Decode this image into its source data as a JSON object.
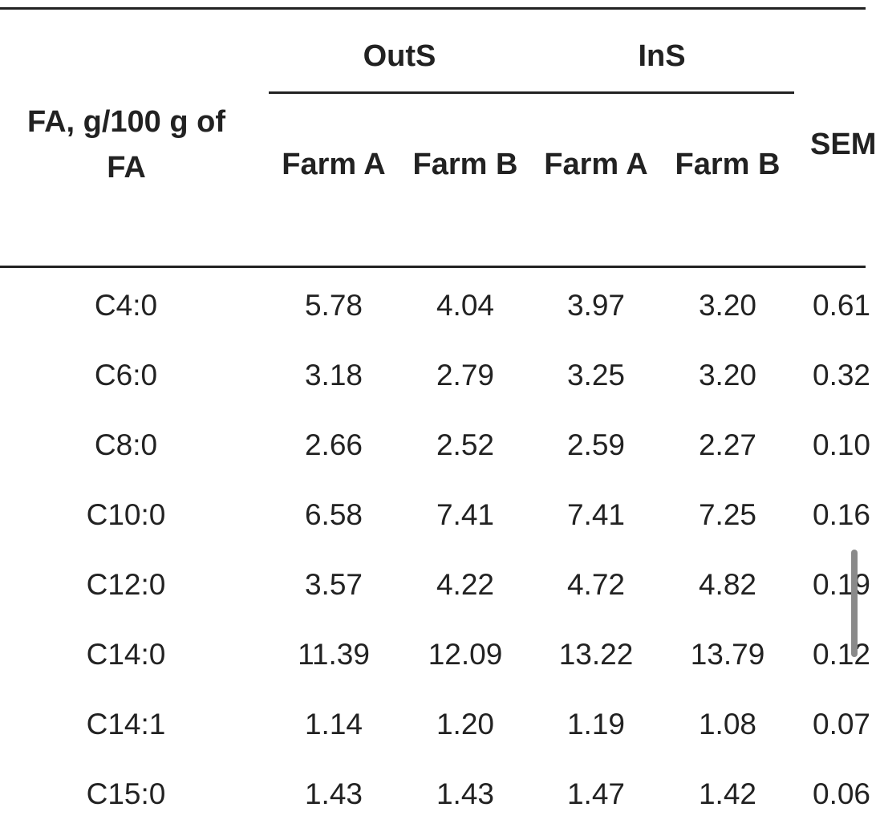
{
  "table": {
    "row_header": "FA, g/100 g of FA",
    "groups": [
      {
        "label": "OutS",
        "columns": [
          "Farm A",
          "Farm B"
        ]
      },
      {
        "label": "InS",
        "columns": [
          "Farm A",
          "Farm B"
        ]
      }
    ],
    "sem_header": "SEM",
    "rows": [
      {
        "fa": "C4:0",
        "values": [
          "5.78",
          "4.04",
          "3.97",
          "3.20"
        ],
        "sem": "0.61"
      },
      {
        "fa": "C6:0",
        "values": [
          "3.18",
          "2.79",
          "3.25",
          "3.20"
        ],
        "sem": "0.32"
      },
      {
        "fa": "C8:0",
        "values": [
          "2.66",
          "2.52",
          "2.59",
          "2.27"
        ],
        "sem": "0.10"
      },
      {
        "fa": "C10:0",
        "values": [
          "6.58",
          "7.41",
          "7.41",
          "7.25"
        ],
        "sem": "0.16"
      },
      {
        "fa": "C12:0",
        "values": [
          "3.57",
          "4.22",
          "4.72",
          "4.82"
        ],
        "sem": "0.19"
      },
      {
        "fa": "C14:0",
        "values": [
          "11.39",
          "12.09",
          "13.22",
          "13.79"
        ],
        "sem": "0.12"
      },
      {
        "fa": "C14:1",
        "values": [
          "1.14",
          "1.20",
          "1.19",
          "1.08"
        ],
        "sem": "0.07"
      },
      {
        "fa": "C15:0",
        "values": [
          "1.43",
          "1.43",
          "1.47",
          "1.42"
        ],
        "sem": "0.06"
      }
    ]
  }
}
